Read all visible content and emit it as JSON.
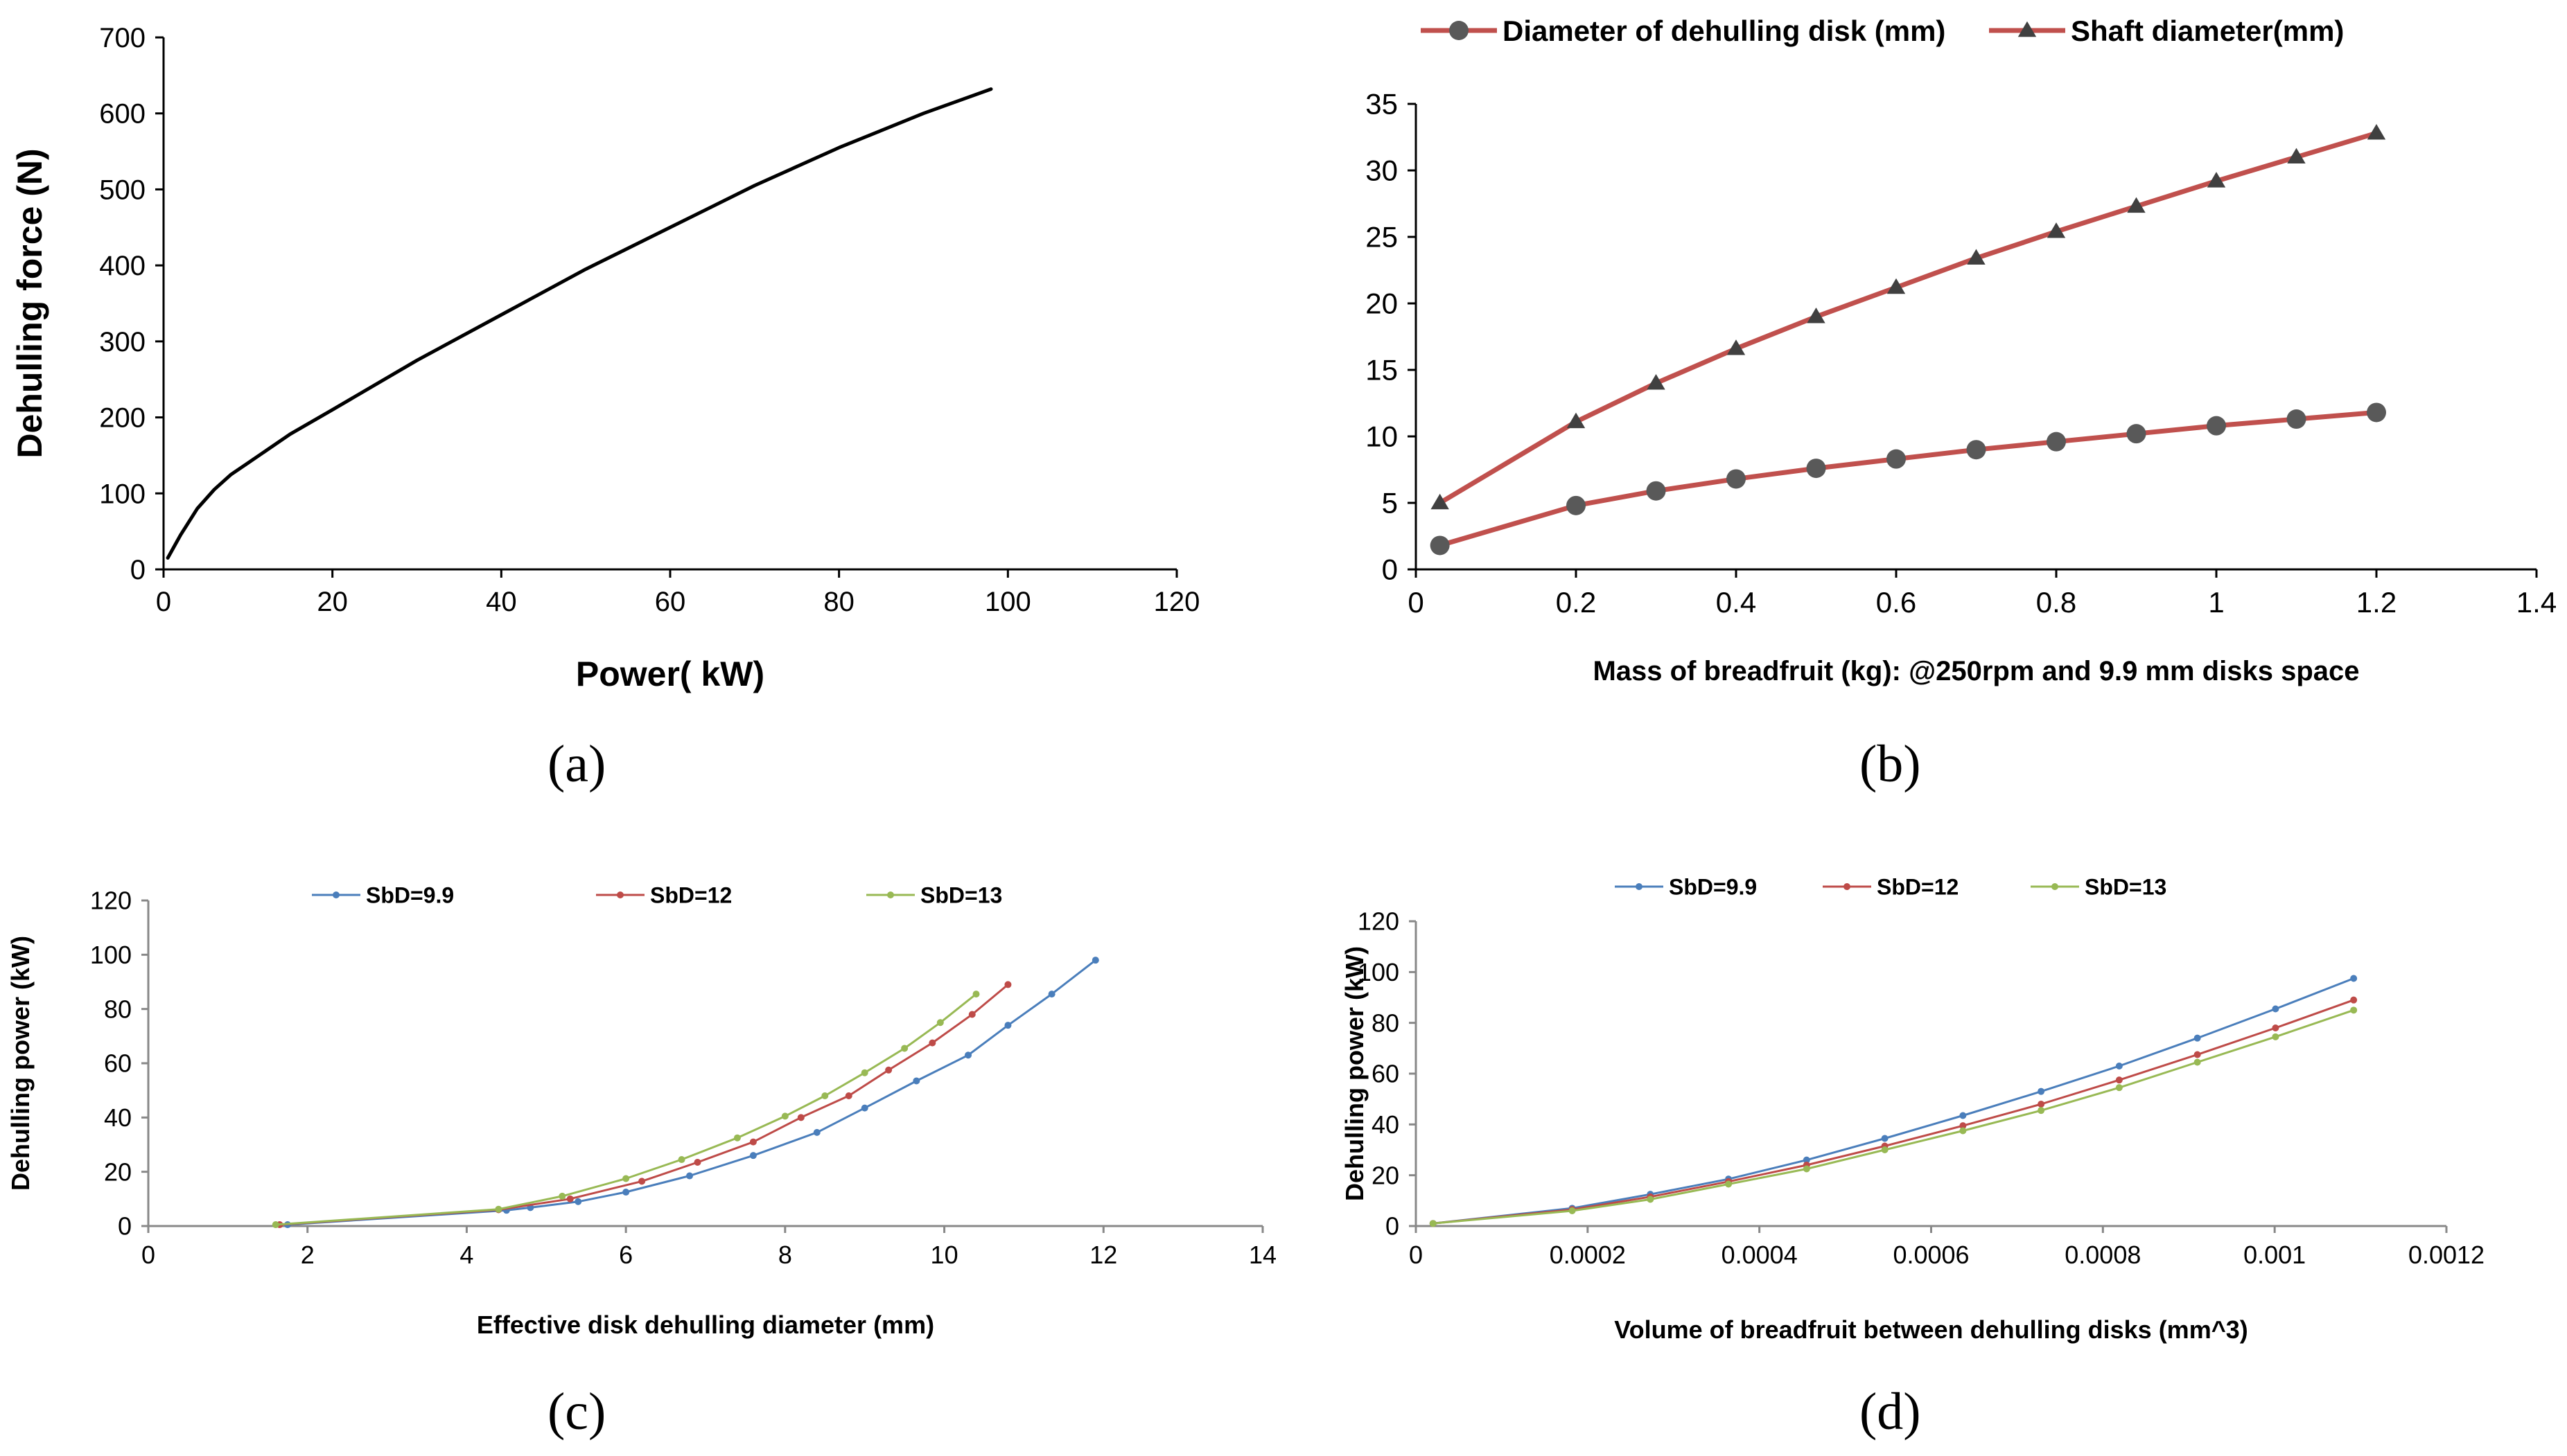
{
  "panels": [
    "(a)",
    "(b)",
    "(c)",
    "(d)"
  ],
  "chart_data": [
    {
      "id": "a",
      "type": "line",
      "title": "",
      "xlabel": "Power( kW)",
      "ylabel": "Dehulling force (N)",
      "xlim": [
        0,
        120
      ],
      "ylim": [
        0,
        700
      ],
      "xticks": [
        0,
        20,
        40,
        60,
        80,
        100,
        120
      ],
      "yticks": [
        0,
        100,
        200,
        300,
        400,
        500,
        600,
        700
      ],
      "legend": [],
      "series": [
        {
          "name": "Dehulling force",
          "color": "#000000",
          "marker": "none",
          "x": [
            0.5,
            2,
            4,
            6,
            8,
            10,
            15,
            20,
            30,
            40,
            50,
            60,
            70,
            80,
            90,
            98
          ],
          "y": [
            15,
            45,
            80,
            105,
            125,
            140,
            178,
            210,
            275,
            335,
            395,
            450,
            505,
            555,
            600,
            632
          ]
        }
      ]
    },
    {
      "id": "b",
      "type": "line",
      "title": "",
      "xlabel": "Mass of breadfruit (kg): @250rpm and 9.9 mm disks space",
      "ylabel": "",
      "xlim": [
        0,
        1.4
      ],
      "ylim": [
        0,
        35
      ],
      "xticks": [
        "0",
        "0.2",
        "0.4",
        "0.6",
        "0.8",
        "1",
        "1.2",
        "1.4"
      ],
      "yticks": [
        0,
        5,
        10,
        15,
        20,
        25,
        30,
        35
      ],
      "legend_position": "top",
      "series": [
        {
          "name": "Diameter of dehulling disk (mm)",
          "color": "#c0504d",
          "marker": "circle",
          "x": [
            0.03,
            0.2,
            0.3,
            0.4,
            0.5,
            0.6,
            0.7,
            0.8,
            0.9,
            1.0,
            1.1,
            1.2
          ],
          "y": [
            1.8,
            4.8,
            5.9,
            6.8,
            7.6,
            8.3,
            9.0,
            9.6,
            10.2,
            10.8,
            11.3,
            11.8
          ]
        },
        {
          "name": "Shaft diameter(mm)",
          "color": "#c0504d",
          "marker": "triangle",
          "x": [
            0.03,
            0.2,
            0.3,
            0.4,
            0.5,
            0.6,
            0.7,
            0.8,
            0.9,
            1.0,
            1.1,
            1.2
          ],
          "y": [
            5.0,
            11.1,
            14.0,
            16.6,
            19.0,
            21.2,
            23.4,
            25.4,
            27.3,
            29.2,
            31.0,
            32.8
          ]
        }
      ]
    },
    {
      "id": "c",
      "type": "line",
      "title": "",
      "xlabel": "Effective disk dehulling diameter (mm)",
      "ylabel": "Dehulling power (kW)",
      "xlim": [
        0,
        14
      ],
      "ylim": [
        0,
        120
      ],
      "xticks": [
        0,
        2,
        4,
        6,
        8,
        10,
        12,
        14
      ],
      "yticks": [
        0,
        20,
        40,
        60,
        80,
        100,
        120
      ],
      "legend_position": "top",
      "series": [
        {
          "name": "SbD=9.9",
          "color": "#4a7ebb",
          "marker": "dot",
          "x": [
            1.75,
            4.5,
            4.8,
            5.4,
            6.0,
            6.8,
            7.6,
            8.4,
            9.0,
            9.65,
            10.3,
            10.8,
            11.35,
            11.9
          ],
          "y": [
            0.5,
            5.8,
            6.8,
            9.0,
            12.5,
            18.5,
            26.0,
            34.5,
            43.5,
            53.5,
            63.0,
            74.0,
            85.5,
            98.0
          ]
        },
        {
          "name": "SbD=12",
          "color": "#be4b48",
          "marker": "dot",
          "x": [
            1.65,
            4.4,
            5.3,
            6.2,
            6.9,
            7.6,
            8.2,
            8.8,
            9.3,
            9.85,
            10.35,
            10.8
          ],
          "y": [
            0.5,
            6.0,
            10.0,
            16.5,
            23.5,
            31.0,
            40.0,
            48.0,
            57.5,
            67.5,
            78.0,
            89.0
          ]
        },
        {
          "name": "SbD=13",
          "color": "#98b954",
          "marker": "dot",
          "x": [
            1.6,
            4.4,
            5.2,
            6.0,
            6.7,
            7.4,
            8.0,
            8.5,
            9.0,
            9.5,
            9.95,
            10.4
          ],
          "y": [
            0.5,
            6.2,
            11.0,
            17.5,
            24.5,
            32.5,
            40.5,
            48.0,
            56.5,
            65.5,
            75.0,
            85.5
          ]
        }
      ]
    },
    {
      "id": "d",
      "type": "line",
      "title": "",
      "xlabel": "Volume of breadfruit between dehulling disks (mm^3)",
      "ylabel": "Dehulling power (kW)",
      "xlim": [
        0,
        0.0012
      ],
      "ylim": [
        0,
        120
      ],
      "xticks": [
        "0",
        "0.0002",
        "0.0004",
        "0.0006",
        "0.0008",
        "0.001",
        "0.0012"
      ],
      "yticks": [
        0,
        20,
        40,
        60,
        80,
        100,
        120
      ],
      "legend_position": "top",
      "series": [
        {
          "name": "SbD=9.9",
          "color": "#4a7ebb",
          "marker": "dot",
          "x": [
            2e-05,
            0.000182,
            0.000273,
            0.000364,
            0.000455,
            0.000546,
            0.000637,
            0.000728,
            0.000819,
            0.00091,
            0.001001,
            0.001092
          ],
          "y": [
            1.0,
            7.0,
            12.5,
            18.5,
            26.0,
            34.5,
            43.5,
            53.0,
            63.0,
            74.0,
            85.5,
            97.5
          ]
        },
        {
          "name": "SbD=12",
          "color": "#be4b48",
          "marker": "dot",
          "x": [
            2e-05,
            0.000182,
            0.000273,
            0.000364,
            0.000455,
            0.000546,
            0.000637,
            0.000728,
            0.000819,
            0.00091,
            0.001001,
            0.001092
          ],
          "y": [
            1.0,
            6.5,
            11.5,
            17.5,
            24.0,
            31.5,
            39.5,
            48.0,
            57.5,
            67.5,
            78.0,
            89.0
          ]
        },
        {
          "name": "SbD=13",
          "color": "#98b954",
          "marker": "dot",
          "x": [
            2e-05,
            0.000182,
            0.000273,
            0.000364,
            0.000455,
            0.000546,
            0.000637,
            0.000728,
            0.000819,
            0.00091,
            0.001001,
            0.001092
          ],
          "y": [
            1.0,
            6.0,
            10.5,
            16.5,
            22.5,
            30.0,
            37.5,
            45.5,
            54.5,
            64.5,
            74.5,
            85.0
          ]
        }
      ]
    }
  ]
}
